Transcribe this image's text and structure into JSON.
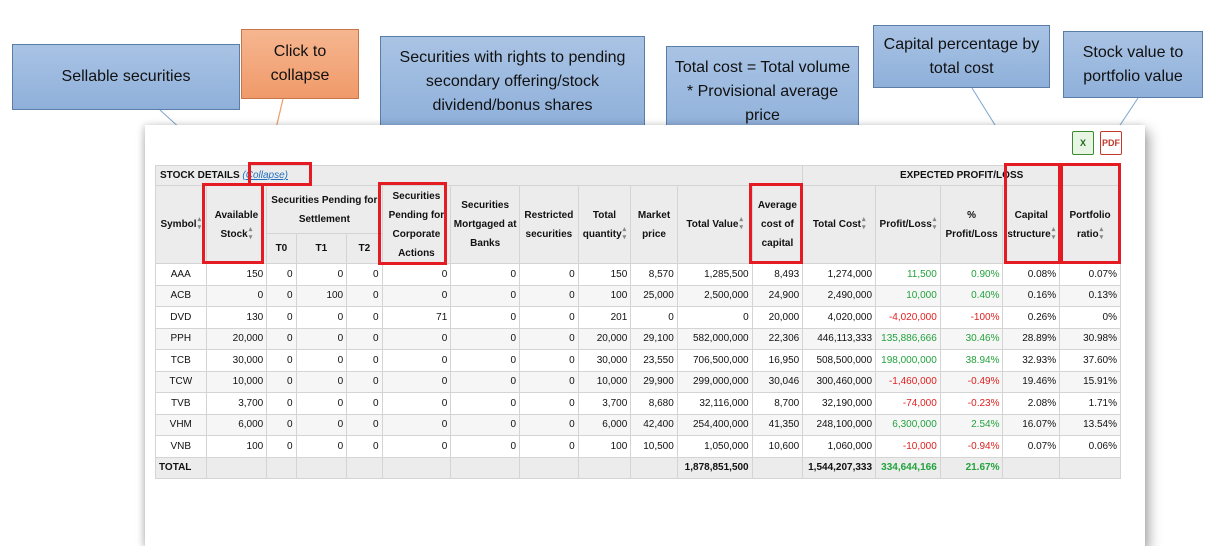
{
  "callouts": {
    "sellable": "Sellable securities",
    "collapse": "Click to collapse",
    "pending": "Securities with rights to pending secondary offering/stock dividend/bonus shares",
    "total_cost": "Total cost = Total volume * Provisional average price",
    "capital_pct": "Capital percentage by total cost",
    "stock_value": "Stock value to portfolio value"
  },
  "export": {
    "excel_icon": "excel-icon",
    "pdf_icon": "pdf-icon",
    "excel_glyph": "X",
    "pdf_glyph": "PDF"
  },
  "header": {
    "stock_details": "STOCK DETAILS",
    "collapse_link": "(Collapse)",
    "expected": "EXPECTED PROFIT/LOSS",
    "symbol": "Symbol",
    "available": "Available Stock",
    "pending_settlement": "Securities Pending for Settlement",
    "t0": "T0",
    "t1": "T1",
    "t2": "T2",
    "corporate": "Securities Pending for Corporate Actions",
    "mortgaged": "Securities Mortgaged at Banks",
    "restricted": "Restricted securities",
    "total_qty": "Total quantity",
    "market_price": "Market price",
    "total_value": "Total Value",
    "avg_cost": "Average cost of capital",
    "total_cost": "Total Cost",
    "profit_loss": "Profit/Loss",
    "pct_profit_loss": "% Profit/Loss",
    "capital_structure": "Capital structure",
    "portfolio_ratio": "Portfolio ratio"
  },
  "rows": [
    {
      "symbol": "AAA",
      "available": "150",
      "t0": "0",
      "t1": "0",
      "t2": "0",
      "corporate": "0",
      "mortgaged": "0",
      "restricted": "0",
      "total_qty": "150",
      "market_price": "8,570",
      "total_value": "1,285,500",
      "avg_cost": "8,493",
      "total_cost": "1,274,000",
      "profit_loss": "11,500",
      "pct": "0.90%",
      "capital": "0.08%",
      "portfolio": "0.07%",
      "sign": "pos"
    },
    {
      "symbol": "ACB",
      "available": "0",
      "t0": "0",
      "t1": "100",
      "t2": "0",
      "corporate": "0",
      "mortgaged": "0",
      "restricted": "0",
      "total_qty": "100",
      "market_price": "25,000",
      "total_value": "2,500,000",
      "avg_cost": "24,900",
      "total_cost": "2,490,000",
      "profit_loss": "10,000",
      "pct": "0.40%",
      "capital": "0.16%",
      "portfolio": "0.13%",
      "sign": "pos"
    },
    {
      "symbol": "DVD",
      "available": "130",
      "t0": "0",
      "t1": "0",
      "t2": "0",
      "corporate": "71",
      "mortgaged": "0",
      "restricted": "0",
      "total_qty": "201",
      "market_price": "0",
      "total_value": "0",
      "avg_cost": "20,000",
      "total_cost": "4,020,000",
      "profit_loss": "-4,020,000",
      "pct": "-100%",
      "capital": "0.26%",
      "portfolio": "0%",
      "sign": "neg"
    },
    {
      "symbol": "PPH",
      "available": "20,000",
      "t0": "0",
      "t1": "0",
      "t2": "0",
      "corporate": "0",
      "mortgaged": "0",
      "restricted": "0",
      "total_qty": "20,000",
      "market_price": "29,100",
      "total_value": "582,000,000",
      "avg_cost": "22,306",
      "total_cost": "446,113,333",
      "profit_loss": "135,886,666",
      "pct": "30.46%",
      "capital": "28.89%",
      "portfolio": "30.98%",
      "sign": "pos"
    },
    {
      "symbol": "TCB",
      "available": "30,000",
      "t0": "0",
      "t1": "0",
      "t2": "0",
      "corporate": "0",
      "mortgaged": "0",
      "restricted": "0",
      "total_qty": "30,000",
      "market_price": "23,550",
      "total_value": "706,500,000",
      "avg_cost": "16,950",
      "total_cost": "508,500,000",
      "profit_loss": "198,000,000",
      "pct": "38.94%",
      "capital": "32.93%",
      "portfolio": "37.60%",
      "sign": "pos"
    },
    {
      "symbol": "TCW",
      "available": "10,000",
      "t0": "0",
      "t1": "0",
      "t2": "0",
      "corporate": "0",
      "mortgaged": "0",
      "restricted": "0",
      "total_qty": "10,000",
      "market_price": "29,900",
      "total_value": "299,000,000",
      "avg_cost": "30,046",
      "total_cost": "300,460,000",
      "profit_loss": "-1,460,000",
      "pct": "-0.49%",
      "capital": "19.46%",
      "portfolio": "15.91%",
      "sign": "neg"
    },
    {
      "symbol": "TVB",
      "available": "3,700",
      "t0": "0",
      "t1": "0",
      "t2": "0",
      "corporate": "0",
      "mortgaged": "0",
      "restricted": "0",
      "total_qty": "3,700",
      "market_price": "8,680",
      "total_value": "32,116,000",
      "avg_cost": "8,700",
      "total_cost": "32,190,000",
      "profit_loss": "-74,000",
      "pct": "-0.23%",
      "capital": "2.08%",
      "portfolio": "1.71%",
      "sign": "neg"
    },
    {
      "symbol": "VHM",
      "available": "6,000",
      "t0": "0",
      "t1": "0",
      "t2": "0",
      "corporate": "0",
      "mortgaged": "0",
      "restricted": "0",
      "total_qty": "6,000",
      "market_price": "42,400",
      "total_value": "254,400,000",
      "avg_cost": "41,350",
      "total_cost": "248,100,000",
      "profit_loss": "6,300,000",
      "pct": "2.54%",
      "capital": "16.07%",
      "portfolio": "13.54%",
      "sign": "pos"
    },
    {
      "symbol": "VNB",
      "available": "100",
      "t0": "0",
      "t1": "0",
      "t2": "0",
      "corporate": "0",
      "mortgaged": "0",
      "restricted": "0",
      "total_qty": "100",
      "market_price": "10,500",
      "total_value": "1,050,000",
      "avg_cost": "10,600",
      "total_cost": "1,060,000",
      "profit_loss": "-10,000",
      "pct": "-0.94%",
      "capital": "0.07%",
      "portfolio": "0.06%",
      "sign": "neg"
    }
  ],
  "total": {
    "label": "TOTAL",
    "total_value": "1,878,851,500",
    "total_cost": "1,544,207,333",
    "profit_loss": "334,644,166",
    "pct": "21.67%"
  },
  "colors": {
    "positive": "#22a33c",
    "negative": "#e02020",
    "highlight": "#e41b23",
    "callout_blue": "#9dbae0",
    "callout_orange": "#f4a878",
    "link": "#1f6fbd"
  }
}
